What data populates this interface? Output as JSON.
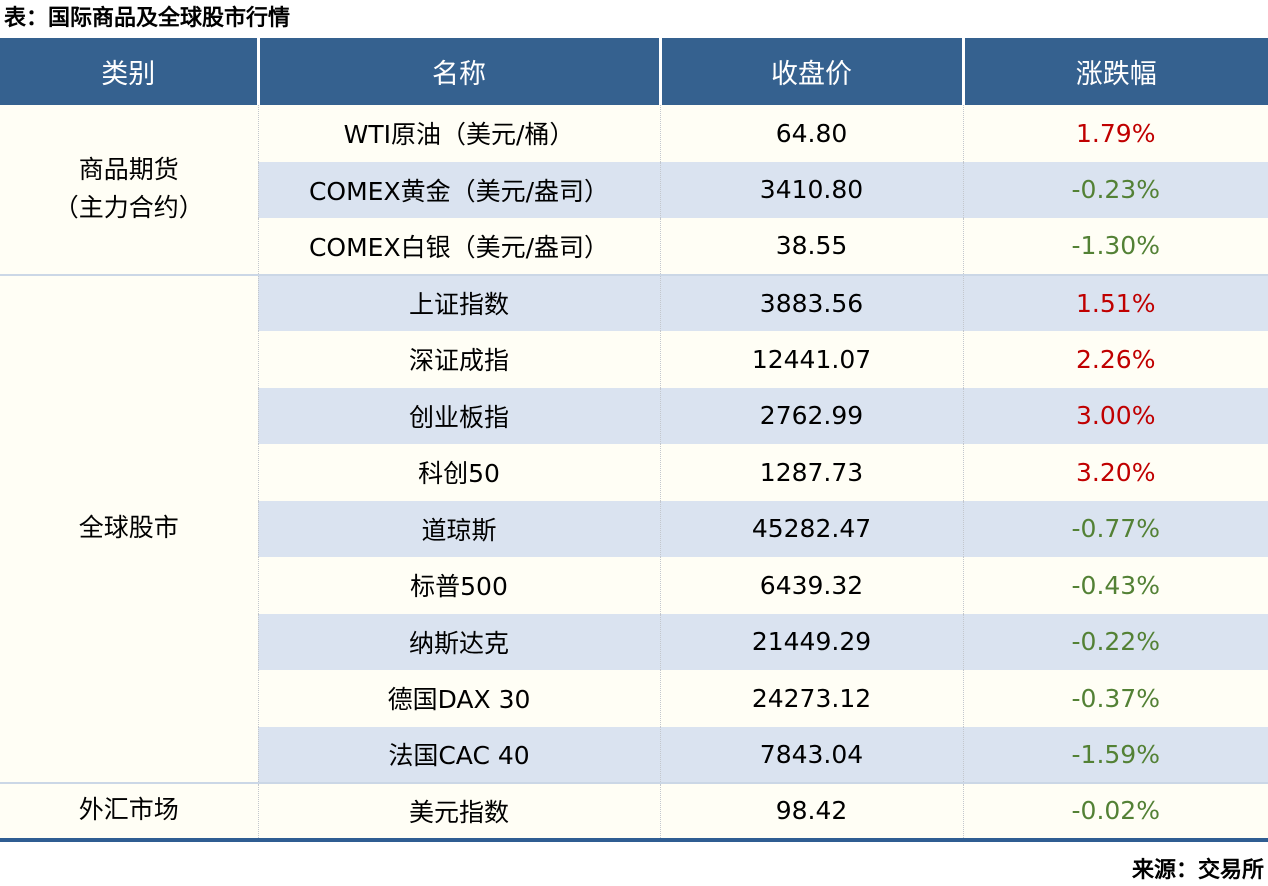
{
  "title": "表：国际商品及全球股市行情",
  "source": "来源：交易所",
  "colors": {
    "header_bg": "#35618F",
    "header_text": "#FFFFFF",
    "row_bg": "#FFFEF5",
    "row_alt_bg": "#DAE3F0",
    "up_red": "#C00000",
    "down_green": "#538135",
    "section_divider": "#CBD7E6",
    "bottom_rule": "#2F5D92"
  },
  "table": {
    "headers": [
      "类别",
      "名称",
      "收盘价",
      "涨跌幅"
    ],
    "sections": [
      {
        "category_lines": [
          "商品期货",
          "（主力合约）"
        ],
        "rows": [
          {
            "name": "WTI原油（美元/桶）",
            "close": "64.80",
            "change": "1.79%"
          },
          {
            "name": "COMEX黄金（美元/盎司）",
            "close": "3410.80",
            "change": "-0.23%"
          },
          {
            "name": "COMEX白银（美元/盎司）",
            "close": "38.55",
            "change": "-1.30%"
          }
        ]
      },
      {
        "category_lines": [
          "全球股市"
        ],
        "rows": [
          {
            "name": "上证指数",
            "close": "3883.56",
            "change": "1.51%"
          },
          {
            "name": "深证成指",
            "close": "12441.07",
            "change": "2.26%"
          },
          {
            "name": "创业板指",
            "close": "2762.99",
            "change": "3.00%"
          },
          {
            "name": "科创50",
            "close": "1287.73",
            "change": "3.20%"
          },
          {
            "name": "道琼斯",
            "close": "45282.47",
            "change": "-0.77%"
          },
          {
            "name": "标普500",
            "close": "6439.32",
            "change": "-0.43%"
          },
          {
            "name": "纳斯达克",
            "close": "21449.29",
            "change": "-0.22%"
          },
          {
            "name": "德国DAX 30",
            "close": "24273.12",
            "change": "-0.37%"
          },
          {
            "name": "法国CAC 40",
            "close": "7843.04",
            "change": "-1.59%"
          }
        ]
      },
      {
        "category_lines": [
          "外汇市场"
        ],
        "rows": [
          {
            "name": "美元指数",
            "close": "98.42",
            "change": "-0.02%"
          }
        ]
      }
    ]
  },
  "chart_data": {
    "type": "table",
    "title": "表：国际商品及全球股市行情",
    "source": "来源：交易所",
    "columns": [
      "类别",
      "名称",
      "收盘价",
      "涨跌幅"
    ],
    "rows": [
      [
        "商品期货（主力合约）",
        "WTI原油（美元/桶）",
        64.8,
        1.79
      ],
      [
        "商品期货（主力合约）",
        "COMEX黄金（美元/盎司）",
        3410.8,
        -0.23
      ],
      [
        "商品期货（主力合约）",
        "COMEX白银（美元/盎司）",
        38.55,
        -1.3
      ],
      [
        "全球股市",
        "上证指数",
        3883.56,
        1.51
      ],
      [
        "全球股市",
        "深证成指",
        12441.07,
        2.26
      ],
      [
        "全球股市",
        "创业板指",
        2762.99,
        3.0
      ],
      [
        "全球股市",
        "科创50",
        1287.73,
        3.2
      ],
      [
        "全球股市",
        "道琼斯",
        45282.47,
        -0.77
      ],
      [
        "全球股市",
        "标普500",
        6439.32,
        -0.43
      ],
      [
        "全球股市",
        "纳斯达克",
        21449.29,
        -0.22
      ],
      [
        "全球股市",
        "德国DAX 30",
        24273.12,
        -0.37
      ],
      [
        "全球股市",
        "法国CAC 40",
        7843.04,
        -1.59
      ],
      [
        "外汇市场",
        "美元指数",
        98.42,
        -0.02
      ]
    ],
    "change_unit": "%",
    "positive_color_meaning": "red = up, green = down (CN convention)"
  }
}
